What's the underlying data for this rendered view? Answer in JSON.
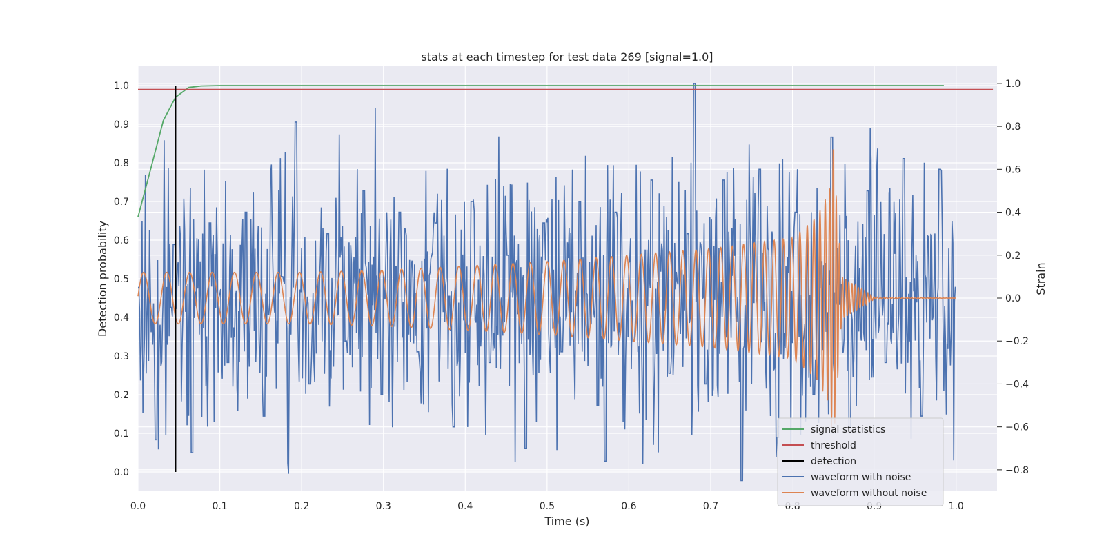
{
  "chart_data": {
    "type": "line",
    "title": "stats at each timestep for test data 269 [signal=1.0]",
    "xlabel": "Time (s)",
    "ylabel_left": "Detection probability",
    "ylabel_right": "Strain",
    "xlim": [
      0.0,
      1.05
    ],
    "ylim_left": [
      -0.05,
      1.05
    ],
    "ylim_right": [
      -0.9,
      1.08
    ],
    "x_ticks": [
      "0.0",
      "0.1",
      "0.2",
      "0.3",
      "0.4",
      "0.5",
      "0.6",
      "0.7",
      "0.8",
      "0.9",
      "1.0"
    ],
    "y_left_ticks": [
      "0.0",
      "0.1",
      "0.2",
      "0.3",
      "0.4",
      "0.5",
      "0.6",
      "0.7",
      "0.8",
      "0.9",
      "1.0"
    ],
    "y_right_ticks": [
      "−0.8",
      "−0.6",
      "−0.4",
      "−0.2",
      "0.0",
      "0.2",
      "0.4",
      "0.6",
      "0.8",
      "1.0"
    ],
    "grid": true,
    "legend_position": "lower-right",
    "legend": [
      {
        "label": "signal statistics",
        "color": "#55a868"
      },
      {
        "label": "threshold",
        "color": "#c44e52"
      },
      {
        "label": "detection",
        "color": "#000000"
      },
      {
        "label": "waveform with noise",
        "color": "#4c72b0"
      },
      {
        "label": "waveform without noise",
        "color": "#dd8452"
      }
    ],
    "series": [
      {
        "name": "signal statistics",
        "axis": "left",
        "color": "#55a868",
        "x": [
          0.0,
          0.015,
          0.031,
          0.046,
          0.062,
          0.077,
          0.1,
          0.2,
          0.4,
          0.6,
          0.8,
          0.985
        ],
        "y": [
          0.66,
          0.78,
          0.91,
          0.97,
          0.995,
          0.999,
          1.0,
          1.0,
          1.0,
          1.0,
          1.0,
          1.0
        ]
      },
      {
        "name": "threshold",
        "axis": "left",
        "color": "#c44e52",
        "x": [
          0.0,
          1.045
        ],
        "y": [
          0.99,
          0.99
        ]
      },
      {
        "name": "detection",
        "axis": "left",
        "color": "#000000",
        "x": [
          0.046,
          0.046
        ],
        "y": [
          0.0,
          1.0
        ]
      },
      {
        "name": "waveform with noise",
        "axis": "right",
        "color": "#4c72b0",
        "x": [
          0.0,
          0.022,
          0.044,
          0.066,
          0.088,
          0.11,
          0.132,
          0.154,
          0.176,
          0.193,
          0.21,
          0.232,
          0.254,
          0.276,
          0.298,
          0.32,
          0.342,
          0.364,
          0.386,
          0.408,
          0.43,
          0.452,
          0.474,
          0.496,
          0.518,
          0.54,
          0.562,
          0.571,
          0.584,
          0.606,
          0.628,
          0.65,
          0.672,
          0.68,
          0.694,
          0.716,
          0.738,
          0.76,
          0.782,
          0.804,
          0.826,
          0.848,
          0.87,
          0.892,
          0.914,
          0.936,
          0.958,
          0.98,
          1.0
        ],
        "y": [
          0.05,
          -0.66,
          0.25,
          -0.72,
          0.35,
          -0.3,
          0.4,
          -0.55,
          0.1,
          0.82,
          -0.4,
          0.3,
          -0.2,
          0.5,
          -0.45,
          0.4,
          -0.25,
          0.35,
          -0.6,
          0.45,
          -0.3,
          0.2,
          -0.7,
          0.35,
          -0.25,
          0.45,
          -0.5,
          -0.76,
          0.4,
          -0.2,
          0.55,
          -0.35,
          0.3,
          1.0,
          -0.4,
          0.55,
          -0.85,
          0.6,
          -0.65,
          0.4,
          -0.45,
          0.75,
          -0.6,
          0.5,
          -0.3,
          0.65,
          -0.55,
          0.6,
          0.05
        ]
      },
      {
        "name": "waveform without noise",
        "axis": "right",
        "color": "#dd8452",
        "note_x_range": [
          0.0,
          1.0
        ],
        "peak_time": 0.85,
        "peak_max": 0.69,
        "peak_min": -0.45,
        "initial_amplitude": 0.12,
        "x": [
          0.0,
          0.1,
          0.2,
          0.3,
          0.4,
          0.5,
          0.6,
          0.7,
          0.8,
          0.83,
          0.845,
          0.85,
          0.86,
          0.9,
          1.0
        ],
        "y_envelope": [
          0.12,
          0.12,
          0.12,
          0.13,
          0.15,
          0.17,
          0.2,
          0.23,
          0.28,
          0.38,
          0.5,
          0.69,
          0.1,
          0.005,
          0.0
        ]
      }
    ]
  }
}
